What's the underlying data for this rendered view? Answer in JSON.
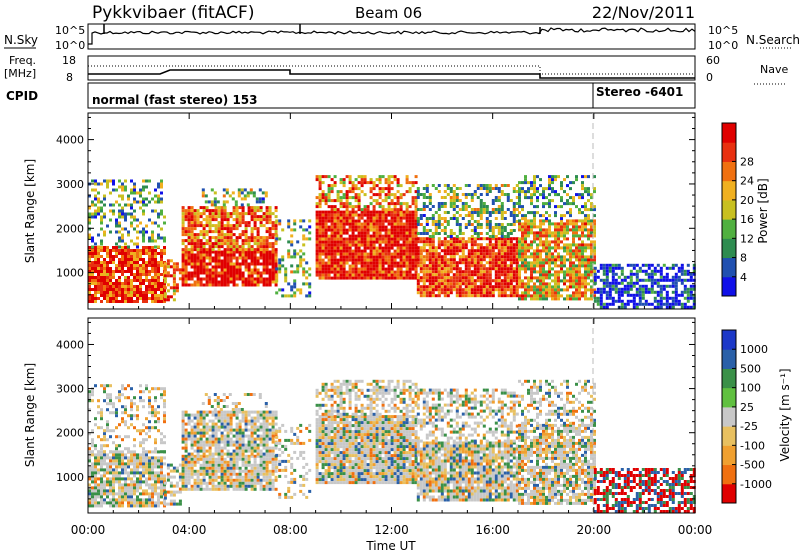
{
  "header": {
    "station": "Pykkvibaer (fitACF)",
    "beam": "Beam 06",
    "date": "22/Nov/2011"
  },
  "noise_panel": {
    "left_label": "N.Sky",
    "right_label": "N.Search",
    "left_ticks": [
      "10^5",
      "10^0"
    ],
    "right_ticks": [
      "10^5",
      "10^0"
    ]
  },
  "freq_panel": {
    "left_label_1": "Freq.",
    "left_label_2": "[MHz]",
    "right_label": "Nave",
    "left_ticks": [
      "18",
      "8"
    ],
    "right_ticks": [
      "60",
      "0"
    ]
  },
  "cpid_panel": {
    "label": "CPID",
    "segments": [
      {
        "text": "normal (fast stereo) 153",
        "start": "00:00",
        "end": "20:00"
      },
      {
        "text": "Stereo -6401",
        "start": "20:00",
        "end": "00:00"
      }
    ]
  },
  "chart_data": [
    {
      "type": "heatmap",
      "title": "",
      "ylabel": "Slant Range [km]",
      "ylim": [
        180,
        4600
      ],
      "yticks": [
        "1000",
        "2000",
        "3000",
        "4000"
      ],
      "xticks": [
        "00:00",
        "04:00",
        "08:00",
        "12:00",
        "16:00",
        "20:00",
        "00:00"
      ],
      "colorbar": {
        "label": "Power [dB]",
        "ticks": [
          "4",
          "8",
          "12",
          "16",
          "20",
          "24",
          "28"
        ],
        "colors": [
          "#1010e8",
          "#2050b0",
          "#2e8c50",
          "#50b040",
          "#c8c020",
          "#f0b020",
          "#f07010",
          "#e83010",
          "#e00000"
        ]
      },
      "segments_described": [
        {
          "start": "00:00",
          "end": "03:00",
          "range_km": [
            300,
            3200
          ],
          "level": "high"
        },
        {
          "start": "04:00",
          "end": "07:30",
          "range_km": [
            600,
            2600
          ],
          "level": "high"
        },
        {
          "start": "09:00",
          "end": "20:00",
          "range_km": [
            300,
            3300
          ],
          "level": "high"
        },
        {
          "start": "20:00",
          "end": "00:00",
          "range_km": [
            200,
            1200
          ],
          "level": "low"
        }
      ]
    },
    {
      "type": "heatmap",
      "title": "",
      "ylabel": "Slant Range [km]",
      "xlabel": "Time UT",
      "ylim": [
        180,
        4600
      ],
      "yticks": [
        "1000",
        "2000",
        "3000",
        "4000"
      ],
      "xticks": [
        "00:00",
        "04:00",
        "08:00",
        "12:00",
        "16:00",
        "20:00",
        "00:00"
      ],
      "colorbar": {
        "label": "Velocity [m s⁻¹]",
        "ticks": [
          "1000",
          "500",
          "100",
          "25",
          "-25",
          "-100",
          "-500",
          "-1000"
        ],
        "colors": [
          "#1c38c8",
          "#2a60a8",
          "#3a9048",
          "#60c040",
          "#c8c8c8",
          "#e8c060",
          "#f0a030",
          "#f07010",
          "#e00000"
        ]
      }
    }
  ],
  "x_axis_label": "Time UT"
}
